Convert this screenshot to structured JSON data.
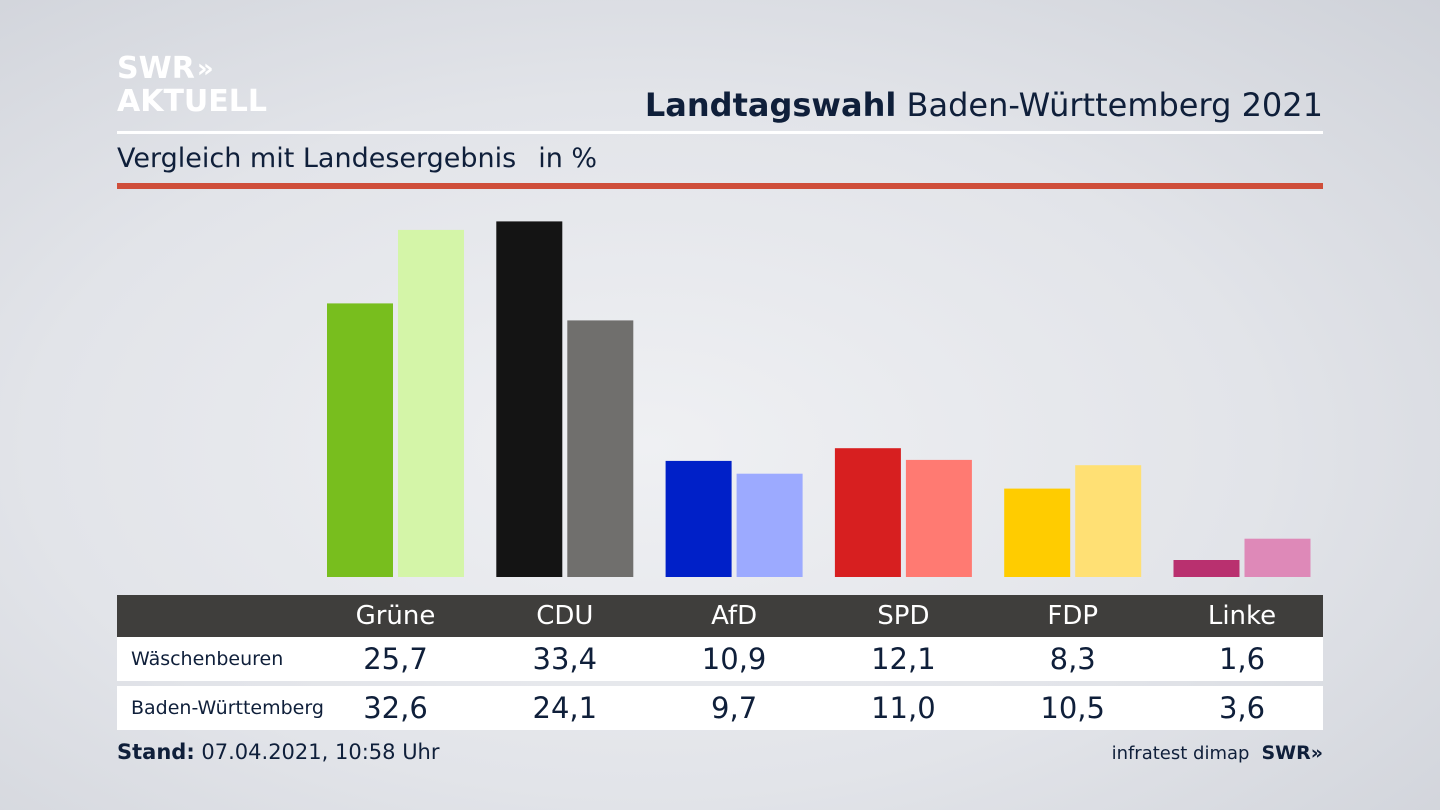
{
  "logo": {
    "line1": "SWR",
    "chevrons": "»",
    "line2": "AKTUELL"
  },
  "header": {
    "title_bold": "Landtagswahl",
    "title_rest": "Baden-Württemberg 2021"
  },
  "subtitle": {
    "text": "Vergleich mit Landesergebnis",
    "unit": "in %"
  },
  "chart_data": {
    "type": "bar",
    "categories": [
      "Grüne",
      "CDU",
      "AfD",
      "SPD",
      "FDP",
      "Linke"
    ],
    "series": [
      {
        "name": "Wäschenbeuren",
        "values": [
          25.7,
          33.4,
          10.9,
          12.1,
          8.3,
          1.6
        ],
        "display": [
          "25,7",
          "33,4",
          "10,9",
          "12,1",
          "8,3",
          "1,6"
        ]
      },
      {
        "name": "Baden-Württemberg",
        "values": [
          32.6,
          24.1,
          9.7,
          11.0,
          10.5,
          3.6
        ],
        "display": [
          "32,6",
          "24,1",
          "9,7",
          "11,0",
          "10,5",
          "3,6"
        ]
      }
    ],
    "colors": {
      "local": [
        "#78be1e",
        "#141414",
        "#0020c8",
        "#d71f20",
        "#ffcc00",
        "#b9306f"
      ],
      "state": [
        "#d4f5a8",
        "#706f6d",
        "#9caaff",
        "#ff7a72",
        "#ffe074",
        "#de89b8"
      ]
    },
    "ylim": [
      0,
      34
    ]
  },
  "footer": {
    "stand_label": "Stand:",
    "stand_value": "07.04.2021, 10:58 Uhr",
    "source": "infratest dimap",
    "source_logo": "SWR»"
  }
}
